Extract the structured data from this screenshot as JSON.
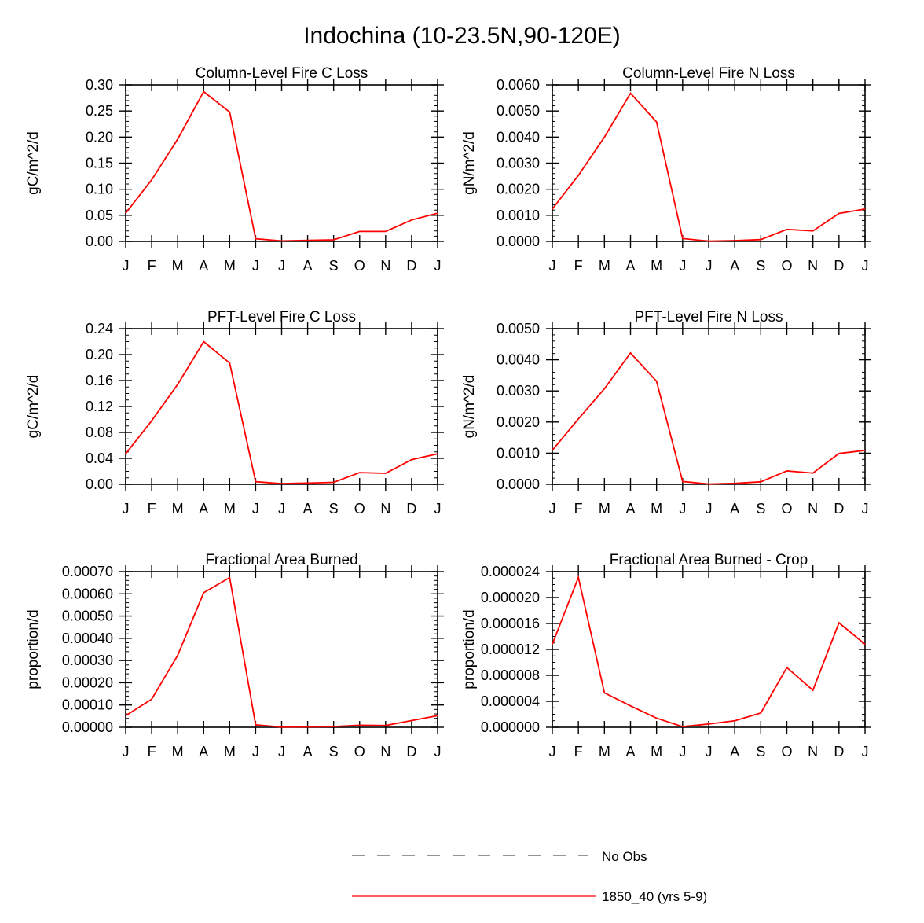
{
  "title": "Indochina (10-23.5N,90-120E)",
  "colors": {
    "series": "#ff0000",
    "axis": "#000000",
    "legend_dash": "#555555"
  },
  "legend": [
    {
      "label": "No Obs",
      "style": "dashed",
      "color": "#555555"
    },
    {
      "label": "1850_40 (yrs 5-9)",
      "style": "solid",
      "color": "#ff0000"
    }
  ],
  "chart_data": [
    {
      "type": "line",
      "title": "Column-Level Fire C Loss",
      "ylabel": "gC/m^2/d",
      "xlabel": "",
      "categories": [
        "J",
        "F",
        "M",
        "A",
        "M",
        "J",
        "J",
        "A",
        "S",
        "O",
        "N",
        "D",
        "J"
      ],
      "ylim": [
        0,
        0.3
      ],
      "yticks": [
        0,
        0.05,
        0.1,
        0.15,
        0.2,
        0.25,
        0.3
      ],
      "ytick_labels": [
        "0.00",
        "0.05",
        "0.10",
        "0.15",
        "0.20",
        "0.25",
        "0.30"
      ],
      "minor_per_major": 5,
      "series": [
        {
          "name": "1850_40 (yrs 5-9)",
          "values": [
            0.054,
            0.118,
            0.196,
            0.287,
            0.248,
            0.005,
            0.001,
            0.002,
            0.003,
            0.019,
            0.019,
            0.041,
            0.054
          ]
        }
      ]
    },
    {
      "type": "line",
      "title": "Column-Level Fire N Loss",
      "ylabel": "gN/m^2/d",
      "xlabel": "",
      "categories": [
        "J",
        "F",
        "M",
        "A",
        "M",
        "J",
        "J",
        "A",
        "S",
        "O",
        "N",
        "D",
        "J"
      ],
      "ylim": [
        0,
        0.006
      ],
      "yticks": [
        0,
        0.001,
        0.002,
        0.003,
        0.004,
        0.005,
        0.006
      ],
      "ytick_labels": [
        "0.0000",
        "0.0010",
        "0.0020",
        "0.0030",
        "0.0040",
        "0.0050",
        "0.0060"
      ],
      "minor_per_major": 5,
      "series": [
        {
          "name": "1850_40 (yrs 5-9)",
          "values": [
            0.00124,
            0.00253,
            0.004,
            0.00568,
            0.00458,
            0.00011,
            1e-05,
            3e-05,
            7e-05,
            0.00046,
            0.0004,
            0.00107,
            0.00124
          ]
        }
      ]
    },
    {
      "type": "line",
      "title": "PFT-Level Fire C Loss",
      "ylabel": "gC/m^2/d",
      "xlabel": "",
      "categories": [
        "J",
        "F",
        "M",
        "A",
        "M",
        "J",
        "J",
        "A",
        "S",
        "O",
        "N",
        "D",
        "J"
      ],
      "ylim": [
        0,
        0.24
      ],
      "yticks": [
        0,
        0.04,
        0.08,
        0.12,
        0.16,
        0.2,
        0.24
      ],
      "ytick_labels": [
        "0.00",
        "0.04",
        "0.08",
        "0.12",
        "0.16",
        "0.20",
        "0.24"
      ],
      "minor_per_major": 4,
      "series": [
        {
          "name": "1850_40 (yrs 5-9)",
          "values": [
            0.047,
            0.098,
            0.154,
            0.22,
            0.187,
            0.004,
            0.001,
            0.002,
            0.003,
            0.018,
            0.017,
            0.038,
            0.047
          ]
        }
      ]
    },
    {
      "type": "line",
      "title": "PFT-Level Fire N Loss",
      "ylabel": "gN/m^2/d",
      "xlabel": "",
      "categories": [
        "J",
        "F",
        "M",
        "A",
        "M",
        "J",
        "J",
        "A",
        "S",
        "O",
        "N",
        "D",
        "J"
      ],
      "ylim": [
        0,
        0.005
      ],
      "yticks": [
        0,
        0.001,
        0.002,
        0.003,
        0.004,
        0.005
      ],
      "ytick_labels": [
        "0.0000",
        "0.0010",
        "0.0020",
        "0.0030",
        "0.0040",
        "0.0050"
      ],
      "minor_per_major": 5,
      "series": [
        {
          "name": "1850_40 (yrs 5-9)",
          "values": [
            0.00109,
            0.0021,
            0.00307,
            0.00422,
            0.00331,
            9e-05,
            1e-05,
            3e-05,
            8e-05,
            0.00043,
            0.00036,
            0.00099,
            0.00109
          ]
        }
      ]
    },
    {
      "type": "line",
      "title": "Fractional Area Burned",
      "ylabel": "proportion/d",
      "xlabel": "",
      "categories": [
        "J",
        "F",
        "M",
        "A",
        "M",
        "J",
        "J",
        "A",
        "S",
        "O",
        "N",
        "D",
        "J"
      ],
      "ylim": [
        0,
        0.0007
      ],
      "yticks": [
        0,
        0.0001,
        0.0002,
        0.0003,
        0.0004,
        0.0005,
        0.0006,
        0.0007
      ],
      "ytick_labels": [
        "0.00000",
        "0.00010",
        "0.00020",
        "0.00030",
        "0.00040",
        "0.00050",
        "0.00060",
        "0.00070"
      ],
      "minor_per_major": 5,
      "series": [
        {
          "name": "1850_40 (yrs 5-9)",
          "values": [
            5.2e-05,
            0.000126,
            0.000323,
            0.000605,
            0.000673,
            1.1e-05,
            1e-06,
            2e-06,
            3e-06,
            9e-06,
            8e-06,
            3e-05,
            5.2e-05
          ]
        }
      ]
    },
    {
      "type": "line",
      "title": "Fractional Area Burned - Crop",
      "ylabel": "proportion/d",
      "xlabel": "",
      "categories": [
        "J",
        "F",
        "M",
        "A",
        "M",
        "J",
        "J",
        "A",
        "S",
        "O",
        "N",
        "D",
        "J"
      ],
      "ylim": [
        0,
        2.4e-05
      ],
      "yticks": [
        0,
        4e-06,
        8e-06,
        1.2e-05,
        1.6e-05,
        2e-05,
        2.4e-05
      ],
      "ytick_labels": [
        "0.000000",
        "0.000004",
        "0.000008",
        "0.000012",
        "0.000016",
        "0.000020",
        "0.000024"
      ],
      "minor_per_major": 4,
      "series": [
        {
          "name": "1850_40 (yrs 5-9)",
          "values": [
            1.28e-05,
            2.31e-05,
            5.3e-06,
            3.3e-06,
            1.4e-06,
            1e-07,
            5e-07,
            1e-06,
            2.2e-06,
            9.2e-06,
            5.7e-06,
            1.61e-05,
            1.28e-05
          ]
        }
      ]
    }
  ]
}
